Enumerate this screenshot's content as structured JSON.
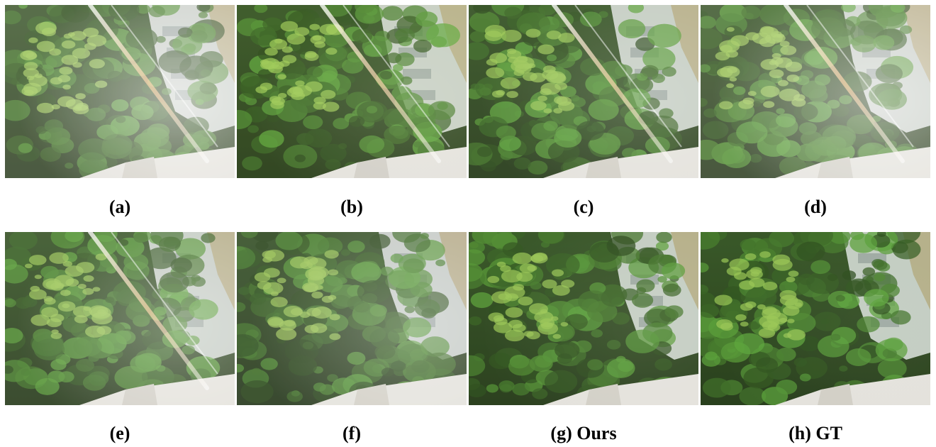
{
  "figure": {
    "panels": [
      {
        "id": "a",
        "label": "(a)",
        "variant": "flare-haze",
        "flare": true,
        "haze": 0.55,
        "tint": "#8aa36a"
      },
      {
        "id": "b",
        "label": "(b)",
        "variant": "flare-sharp",
        "flare": true,
        "haze": 0.15,
        "tint": "#6f9a3a"
      },
      {
        "id": "c",
        "label": "(c)",
        "variant": "flare-sharp",
        "flare": true,
        "haze": 0.2,
        "tint": "#688f45"
      },
      {
        "id": "d",
        "label": "(d)",
        "variant": "flare-haze",
        "flare": true,
        "haze": 0.5,
        "tint": "#89a06a"
      },
      {
        "id": "e",
        "label": "(e)",
        "variant": "flare-soft",
        "flare": true,
        "haze": 0.35,
        "tint": "#6b8a4a"
      },
      {
        "id": "f",
        "label": "(f)",
        "variant": "clean-haze",
        "flare": false,
        "haze": 0.3,
        "tint": "#6e8558"
      },
      {
        "id": "g",
        "label": "(g) Ours",
        "variant": "clean",
        "flare": false,
        "haze": 0.1,
        "tint": "#5e8a3a"
      },
      {
        "id": "h",
        "label": "(h) GT",
        "variant": "clean",
        "flare": false,
        "haze": 0.05,
        "tint": "#5f8f3c"
      }
    ]
  }
}
